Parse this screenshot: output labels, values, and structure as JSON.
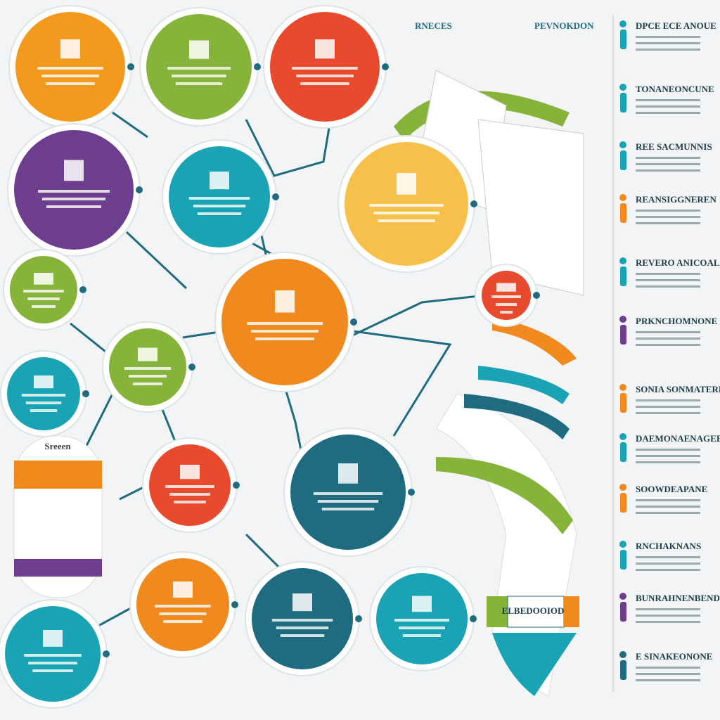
{
  "headings": {
    "top": [
      "RNECES",
      "PEVNOKDON"
    ],
    "sidebar": [
      "DPCE ECE ANOUE",
      "TONANEONCUNE",
      "REE SACMUNNIS",
      "REANSIGGNEREN",
      "REVERO ANICOAL",
      "PRKNCHOMNONE",
      "SONIA SONMATERL",
      "DAEMONAENAGEE",
      "SOOWDEAPANE",
      "RNCHAKNANS",
      "BUNRAHNENBEND",
      "E SINAKEONONE"
    ]
  },
  "banner": "ELBEDOOIOD",
  "pill_title": "Sreeen"
}
